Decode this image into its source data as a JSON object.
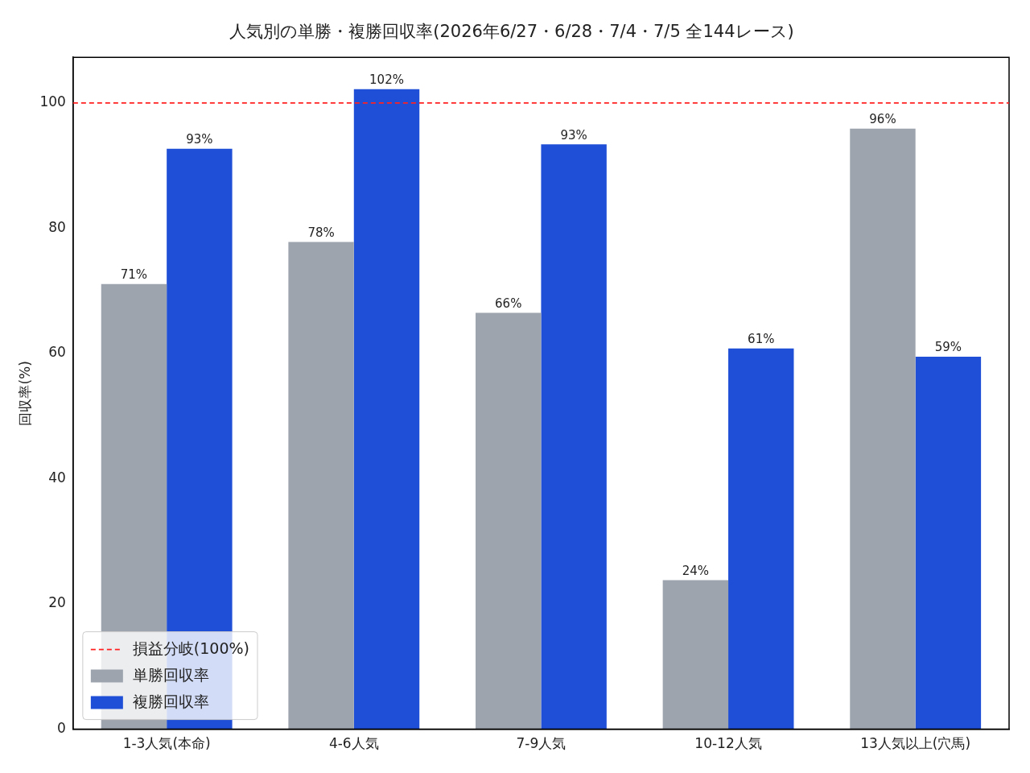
{
  "chart_data": {
    "type": "bar",
    "title": "人気別の単勝・複勝回収率(2026年6/27・6/28・7/4・7/5 全144レース)",
    "ylabel": "回収率(%)",
    "categories": [
      "1-3人気(本命)",
      "4-6人気",
      "7-9人気",
      "10-12人気",
      "13人気以上(穴馬)"
    ],
    "series": [
      {
        "name": "単勝回収率",
        "color": "#9ea4ae",
        "values": [
          71.1,
          77.8,
          66.5,
          23.8,
          95.9
        ],
        "value_labels": [
          "71%",
          "78%",
          "66%",
          "24%",
          "96%"
        ]
      },
      {
        "name": "複勝回収率",
        "color": "#1f4fd6",
        "values": [
          92.7,
          102.2,
          93.4,
          60.8,
          59.5
        ],
        "value_labels": [
          "93%",
          "102%",
          "93%",
          "61%",
          "59%"
        ]
      }
    ],
    "ylim": [
      0,
      107.3
    ],
    "yticks": [
      0,
      20,
      40,
      60,
      80,
      100
    ],
    "grid": false,
    "legend": "bottom left",
    "ref_lines": [
      {
        "axis": "y",
        "value": 100,
        "label": "損益分岐(100%)",
        "color": "#ff2020",
        "line_style": "dashed"
      }
    ]
  }
}
